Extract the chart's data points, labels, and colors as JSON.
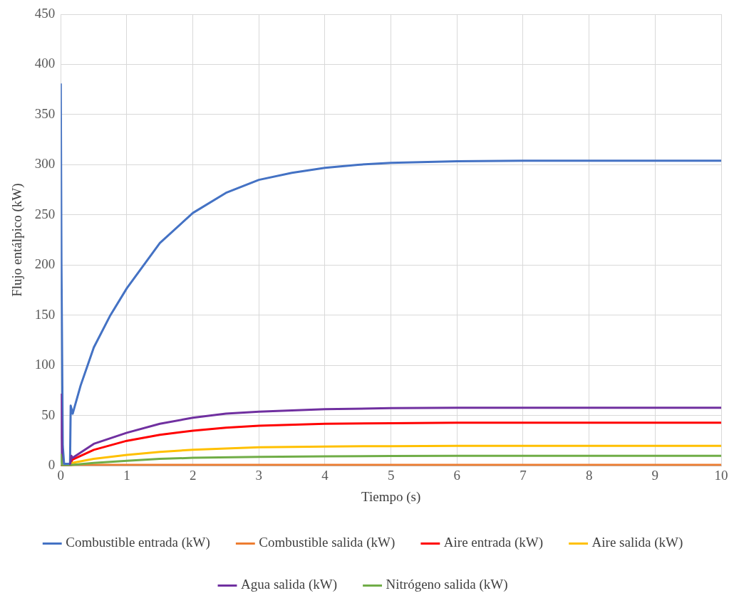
{
  "chart_data": {
    "type": "line",
    "xlabel": "Tiempo (s)",
    "ylabel": "Flujo entálpico (kW)",
    "xlim": [
      0,
      10
    ],
    "xticks": [
      0,
      1,
      2,
      3,
      4,
      5,
      6,
      7,
      8,
      9,
      10
    ],
    "ylim": [
      0,
      450
    ],
    "yticks": [
      0,
      50,
      100,
      150,
      200,
      250,
      300,
      350,
      400,
      450
    ],
    "grid": true,
    "legend": "bottom",
    "marker": "none",
    "line_style": "solid",
    "series": [
      {
        "name": "Combustible entrada (kW)",
        "color": "#4472c4",
        "x": [
          0,
          0.01,
          0.03,
          0.05,
          0.14,
          0.15,
          0.18,
          0.3,
          0.5,
          0.75,
          1,
          1.5,
          2,
          2.5,
          3,
          3.5,
          4,
          4.5,
          5,
          6,
          7,
          8,
          9,
          10
        ],
        "values": [
          381,
          200,
          20,
          2,
          2,
          60,
          52,
          80,
          118,
          150,
          177,
          222,
          252,
          272,
          285,
          292,
          297,
          300,
          302,
          303.5,
          304,
          304,
          304,
          304
        ]
      },
      {
        "name": "Combustible salida (kW)",
        "color": "#ed7d31",
        "x": [
          0,
          0.15,
          0.2,
          1,
          2,
          5,
          10
        ],
        "values": [
          0,
          0,
          1,
          1,
          1,
          1,
          1
        ]
      },
      {
        "name": "Aire entrada (kW)",
        "color": "#ff0000",
        "x": [
          0,
          0.15,
          0.17,
          0.5,
          1,
          1.5,
          2,
          2.5,
          3,
          4,
          5,
          6,
          8,
          10
        ],
        "values": [
          0,
          0,
          6,
          16,
          25,
          31,
          35,
          38,
          40,
          42,
          42.5,
          43,
          43,
          43
        ]
      },
      {
        "name": "Aire salida (kW)",
        "color": "#ffc000",
        "x": [
          0,
          0.15,
          0.17,
          0.5,
          1,
          1.5,
          2,
          3,
          4,
          5,
          6,
          8,
          10
        ],
        "values": [
          0,
          0,
          3,
          7,
          11,
          14,
          16,
          18.5,
          19.3,
          19.7,
          20,
          20,
          20
        ]
      },
      {
        "name": "Agua salida (kW)",
        "color": "#7030a0",
        "x": [
          0,
          0.01,
          0.02,
          0.14,
          0.16,
          0.18,
          0.5,
          1,
          1.5,
          2,
          2.5,
          3,
          4,
          5,
          6,
          8,
          10
        ],
        "values": [
          72,
          40,
          0,
          0,
          10,
          8,
          22,
          33,
          42,
          48,
          52,
          54,
          56.5,
          57.5,
          58,
          58,
          58
        ]
      },
      {
        "name": "Nitrógeno salida (kW)",
        "color": "#70ad47",
        "x": [
          0,
          0.01,
          0.02,
          0.15,
          0.17,
          0.5,
          1,
          1.5,
          2,
          3,
          4,
          5,
          6,
          8,
          10
        ],
        "values": [
          12,
          6,
          0,
          0,
          1,
          3,
          5,
          7,
          8,
          9,
          9.5,
          9.8,
          10,
          10,
          10
        ]
      }
    ]
  }
}
